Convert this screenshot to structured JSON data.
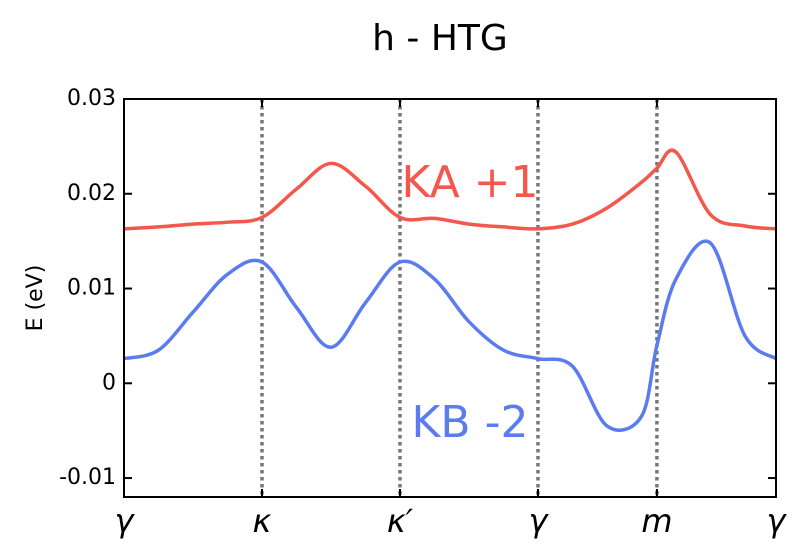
{
  "chart_data": {
    "type": "line",
    "title": "h - HTG",
    "y_label": "E (eV)",
    "x": [
      0,
      0.25,
      0.5,
      0.75,
      1,
      1.25,
      1.5,
      1.75,
      2,
      2.25,
      2.5,
      2.75,
      3,
      3.25,
      3.5,
      3.75,
      3.862,
      4,
      4.25,
      4.5,
      4.725
    ],
    "series": [
      {
        "name": "KA +1",
        "color": "#f4574b",
        "values": [
          0.0163,
          0.0165,
          0.0168,
          0.017,
          0.0175,
          0.0205,
          0.0232,
          0.0208,
          0.0175,
          0.0174,
          0.0168,
          0.0165,
          0.0163,
          0.0168,
          0.0185,
          0.0212,
          0.0227,
          0.0244,
          0.0178,
          0.0166,
          0.0163
        ]
      },
      {
        "name": "KB -2",
        "color": "#5b7bf0",
        "values": [
          0.0026,
          0.0035,
          0.0075,
          0.0115,
          0.0128,
          0.008,
          0.0038,
          0.0085,
          0.0128,
          0.011,
          0.0065,
          0.0035,
          0.0026,
          0.0018,
          -0.0045,
          -0.0035,
          0.004,
          0.011,
          0.0148,
          0.005,
          0.0026
        ]
      }
    ],
    "xlim": [
      0,
      4.725
    ],
    "xticks": [
      {
        "value": 0,
        "label": "γ"
      },
      {
        "value": 1,
        "label": "κ"
      },
      {
        "value": 2,
        "label": "κ′"
      },
      {
        "value": 3,
        "label": "γ"
      },
      {
        "value": 3.862,
        "label": "m"
      },
      {
        "value": 4.725,
        "label": "γ"
      }
    ],
    "ylim": [
      -0.012,
      0.03
    ],
    "yticks": [
      0.03,
      0.02,
      0.01,
      0,
      -0.01
    ],
    "grid": true
  }
}
